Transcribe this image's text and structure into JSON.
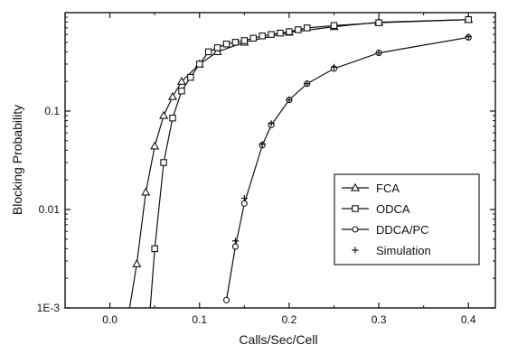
{
  "chart_data": {
    "type": "line",
    "title": "",
    "xlabel": "Calls/Sec/Cell",
    "ylabel": "Blocking Probability",
    "xlim": [
      -0.05,
      0.43
    ],
    "ylim": [
      0.001,
      1.0
    ],
    "yscale": "log",
    "x_ticks": [
      0.0,
      0.1,
      0.2,
      0.3,
      0.4
    ],
    "x_tick_labels": [
      "0.0",
      "0.1",
      "0.2",
      "0.3",
      "0.4"
    ],
    "y_ticks": [
      0.001,
      0.01,
      0.1
    ],
    "y_tick_labels": [
      "1E-3",
      "0.01",
      "0.1"
    ],
    "grid": false,
    "legend_position": "lower-right",
    "series": [
      {
        "name": "FCA",
        "marker": "triangle",
        "x": [
          0.022,
          0.03,
          0.04,
          0.05,
          0.06,
          0.07,
          0.08,
          0.1,
          0.12,
          0.15,
          0.2,
          0.25,
          0.3,
          0.4
        ],
        "y": [
          0.001,
          0.0028,
          0.015,
          0.044,
          0.09,
          0.14,
          0.2,
          0.3,
          0.4,
          0.5,
          0.63,
          0.72,
          0.8,
          0.85
        ]
      },
      {
        "name": "ODCA",
        "marker": "square",
        "x": [
          0.045,
          0.05,
          0.06,
          0.07,
          0.08,
          0.09,
          0.1,
          0.11,
          0.12,
          0.13,
          0.14,
          0.15,
          0.16,
          0.17,
          0.18,
          0.19,
          0.2,
          0.21,
          0.22,
          0.25,
          0.3,
          0.4
        ],
        "y": [
          0.001,
          0.004,
          0.03,
          0.085,
          0.16,
          0.22,
          0.3,
          0.4,
          0.44,
          0.48,
          0.5,
          0.52,
          0.55,
          0.58,
          0.6,
          0.62,
          0.64,
          0.67,
          0.7,
          0.74,
          0.79,
          0.85
        ]
      },
      {
        "name": "DDCA/PC",
        "marker": "circle",
        "x": [
          0.13,
          0.14,
          0.15,
          0.17,
          0.18,
          0.2,
          0.22,
          0.25,
          0.3,
          0.4
        ],
        "y": [
          0.0012,
          0.0042,
          0.0115,
          0.045,
          0.072,
          0.13,
          0.19,
          0.27,
          0.39,
          0.56
        ]
      },
      {
        "name": "Simulation",
        "marker": "plus",
        "x": [
          0.14,
          0.15,
          0.17,
          0.18,
          0.2,
          0.22,
          0.25,
          0.3,
          0.4
        ],
        "y": [
          0.0048,
          0.013,
          0.046,
          0.075,
          0.13,
          0.19,
          0.28,
          0.39,
          0.57
        ]
      }
    ]
  }
}
